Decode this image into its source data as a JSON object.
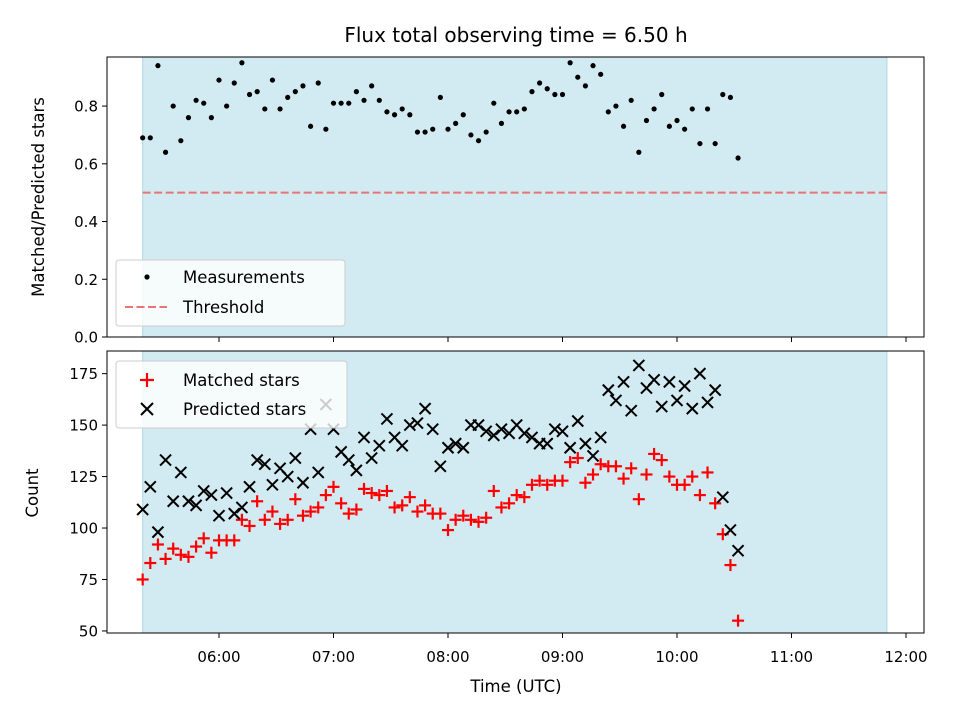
{
  "title": "Flux total observing time = 6.50 h",
  "chart_data": [
    {
      "type": "scatter",
      "panel": "top",
      "ylabel": "Matched/Predicted stars",
      "ylim": [
        0,
        0.97
      ],
      "yticks": [
        0.0,
        0.2,
        0.4,
        0.6,
        0.8
      ],
      "ytick_labels": [
        "0.0",
        "0.2",
        "0.4",
        "0.6",
        "0.8"
      ],
      "x_start": "05:20",
      "x_step_min": 4,
      "shaded_interval": [
        "05:20",
        "11:50"
      ],
      "legend_position": "lower-left",
      "series": [
        {
          "name": "Measurements",
          "marker": "dot",
          "color": "#000000",
          "values": [
            0.69,
            0.69,
            0.94,
            0.64,
            0.8,
            0.68,
            0.76,
            0.82,
            0.81,
            0.76,
            0.89,
            0.8,
            0.88,
            0.95,
            0.84,
            0.85,
            0.79,
            0.89,
            0.79,
            0.83,
            0.85,
            0.87,
            0.73,
            0.88,
            0.72,
            0.81,
            0.81,
            0.81,
            0.85,
            0.82,
            0.87,
            0.82,
            0.78,
            0.77,
            0.79,
            0.77,
            0.71,
            0.71,
            0.72,
            0.83,
            0.72,
            0.74,
            0.77,
            0.7,
            0.68,
            0.71,
            0.81,
            0.74,
            0.78,
            0.78,
            0.79,
            0.85,
            0.88,
            0.86,
            0.84,
            0.84,
            0.95,
            0.9,
            0.87,
            0.94,
            0.91,
            0.78,
            0.8,
            0.73,
            0.82,
            0.64,
            0.75,
            0.79,
            0.84,
            0.73,
            0.75,
            0.72,
            0.79,
            0.67,
            0.79,
            0.67,
            0.84,
            0.83,
            0.62
          ]
        },
        {
          "name": "Threshold",
          "marker": "dashed-line",
          "color": "#e87474",
          "value": 0.5,
          "x_range": [
            "05:20",
            "11:50"
          ]
        }
      ]
    },
    {
      "type": "scatter",
      "panel": "bottom",
      "xlabel": "Time (UTC)",
      "ylabel": "Count",
      "ylim": [
        49,
        186
      ],
      "yticks": [
        50,
        75,
        100,
        125,
        150,
        175
      ],
      "ytick_labels": [
        "50",
        "75",
        "100",
        "125",
        "150",
        "175"
      ],
      "xticks": [
        "06:00",
        "07:00",
        "08:00",
        "09:00",
        "10:00",
        "11:00",
        "12:00"
      ],
      "xlim": [
        "05:00",
        "12:10"
      ],
      "x_start": "05:20",
      "x_step_min": 4,
      "shaded_interval": [
        "05:20",
        "11:50"
      ],
      "legend_position": "upper-left",
      "series": [
        {
          "name": "Matched stars",
          "marker": "plus",
          "color": "#ff0000",
          "values": [
            75,
            83,
            92,
            85,
            90,
            87,
            86,
            91,
            95,
            88,
            94,
            94,
            94,
            104,
            101,
            113,
            104,
            108,
            102,
            104,
            114,
            106,
            108,
            110,
            116,
            120,
            112,
            107,
            109,
            119,
            117,
            116,
            118,
            110,
            111,
            115,
            108,
            111,
            107,
            107,
            99,
            104,
            106,
            104,
            103,
            105,
            118,
            110,
            112,
            116,
            115,
            121,
            123,
            121,
            123,
            123,
            132,
            134,
            122,
            126,
            131,
            130,
            130,
            124,
            129,
            114,
            126,
            136,
            133,
            125,
            121,
            121,
            125,
            116,
            127,
            112,
            97,
            82,
            55
          ]
        },
        {
          "name": "Predicted stars",
          "marker": "cross",
          "color": "#000000",
          "values": [
            109,
            120,
            98,
            133,
            113,
            127,
            113,
            111,
            118,
            116,
            106,
            117,
            107,
            110,
            120,
            133,
            131,
            121,
            129,
            125,
            134,
            122,
            148,
            127,
            160,
            148,
            137,
            133,
            128,
            144,
            134,
            140,
            153,
            144,
            140,
            150,
            151,
            158,
            148,
            130,
            139,
            141,
            139,
            150,
            150,
            147,
            145,
            148,
            146,
            150,
            146,
            144,
            141,
            141,
            148,
            147,
            139,
            152,
            141,
            135,
            144,
            167,
            162,
            171,
            157,
            179,
            168,
            172,
            159,
            171,
            162,
            169,
            158,
            175,
            161,
            167,
            115,
            99,
            89
          ]
        }
      ]
    }
  ]
}
